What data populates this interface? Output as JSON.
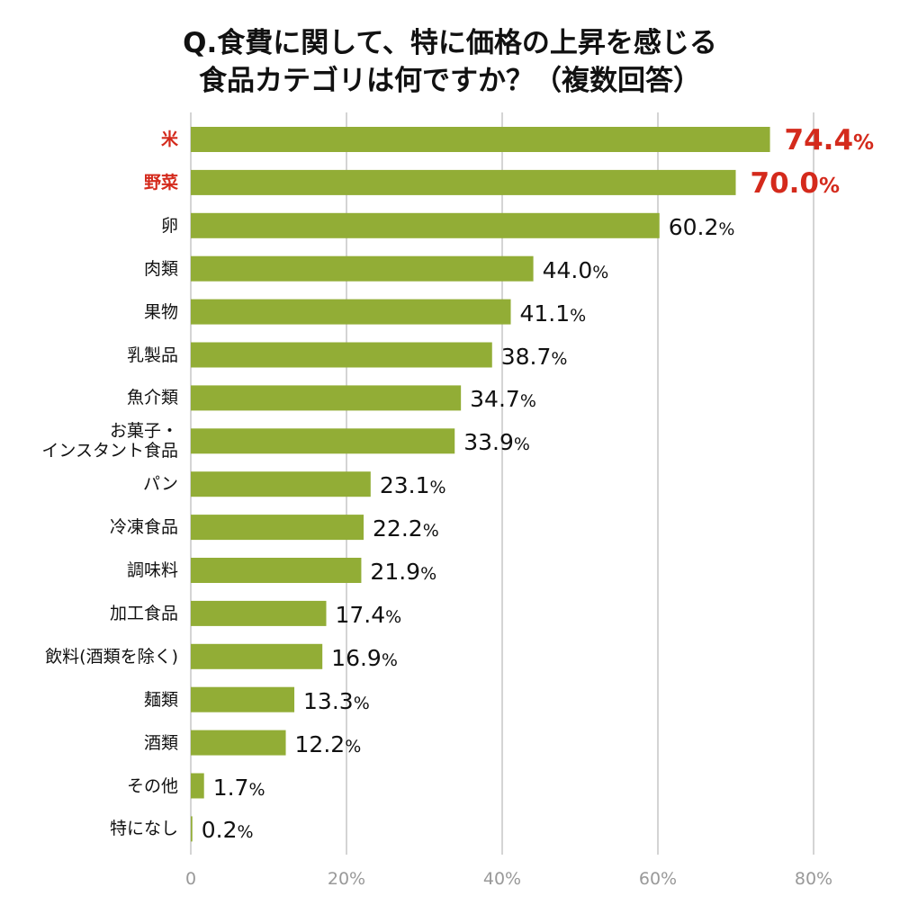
{
  "chart_data": {
    "type": "bar",
    "orientation": "horizontal",
    "title": [
      "Q.食費に関して、特に価格の上昇を感じる",
      "食品カテゴリは何ですか？（複数回答）"
    ],
    "categories": [
      "米",
      "野菜",
      "卵",
      "肉類",
      "果物",
      "乳製品",
      "魚介類",
      "お菓子・\nインスタント食品",
      "パン",
      "冷凍食品",
      "調味料",
      "加工食品",
      "飲料(酒類を除く)",
      "麺類",
      "酒類",
      "その他",
      "特になし"
    ],
    "values": [
      74.4,
      70.0,
      60.2,
      44.0,
      41.1,
      38.7,
      34.7,
      33.9,
      23.1,
      22.2,
      21.9,
      17.4,
      16.9,
      13.3,
      12.2,
      1.7,
      0.2
    ],
    "value_labels": [
      "74.4",
      "70.0",
      "60.2",
      "44.0",
      "41.1",
      "38.7",
      "34.7",
      "33.9",
      "23.1",
      "22.2",
      "21.9",
      "17.4",
      "16.9",
      "13.3",
      "12.2",
      "1.7",
      "0.2"
    ],
    "highlighted": [
      true,
      true,
      false,
      false,
      false,
      false,
      false,
      false,
      false,
      false,
      false,
      false,
      false,
      false,
      false,
      false,
      false
    ],
    "unit": "%",
    "xlim": [
      0,
      80
    ],
    "x_ticks": [
      0,
      20,
      40,
      60,
      80
    ],
    "x_tick_labels": [
      "0",
      "20%",
      "40%",
      "60%",
      "80%"
    ],
    "grid": true,
    "bar_color": "#92ad36",
    "highlight_color": "#d42a1c",
    "grid_color": "#aaaaaa"
  }
}
